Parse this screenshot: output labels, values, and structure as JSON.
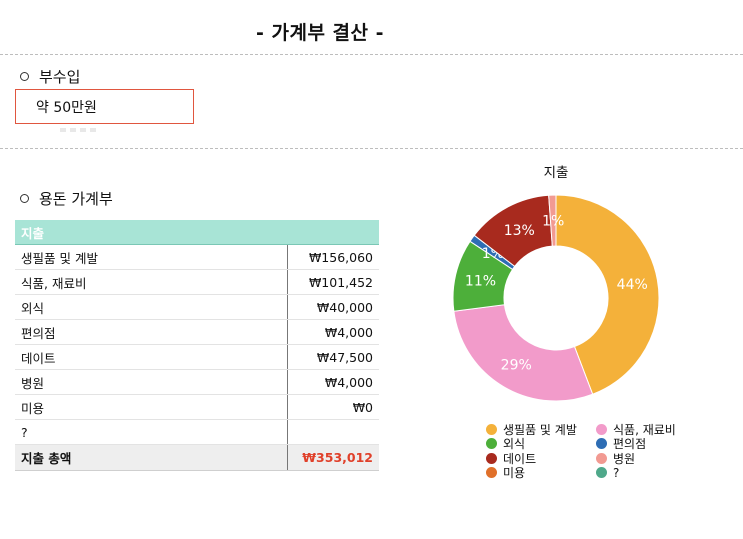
{
  "header": {
    "title": "- 가계부 결산 -"
  },
  "income": {
    "heading": "부수입",
    "value": "약 50만원"
  },
  "budget": {
    "heading": "용돈 가계부",
    "table_header": "지출",
    "rows": [
      {
        "category": "생필품 및 계발",
        "amount": "₩156,060"
      },
      {
        "category": "식품, 재료비",
        "amount": "₩101,452"
      },
      {
        "category": "외식",
        "amount": "₩40,000"
      },
      {
        "category": "편의점",
        "amount": "₩4,000"
      },
      {
        "category": "데이트",
        "amount": "₩47,500"
      },
      {
        "category": "병원",
        "amount": "₩4,000"
      },
      {
        "category": "미용",
        "amount": "₩0"
      },
      {
        "category": "?",
        "amount": ""
      }
    ],
    "total_label": "지출 총액",
    "total_amount": "₩353,012"
  },
  "chart_data": {
    "type": "pie",
    "title": "지출",
    "donut": true,
    "legend_position": "bottom",
    "categories": [
      "생필품 및 계발",
      "식품, 재료비",
      "외식",
      "편의점",
      "데이트",
      "병원",
      "미용",
      "?"
    ],
    "values": [
      156060,
      101452,
      40000,
      4000,
      47500,
      4000,
      0,
      0
    ],
    "percent_labels": [
      "44%",
      "29%",
      "11%",
      "1%",
      "13%",
      "1%",
      "",
      ""
    ],
    "colors": [
      "#f4b13a",
      "#f29bca",
      "#4daf3a",
      "#2e6db4",
      "#a82a1e",
      "#f29a92",
      "#e0702a",
      "#4fa88a"
    ]
  }
}
